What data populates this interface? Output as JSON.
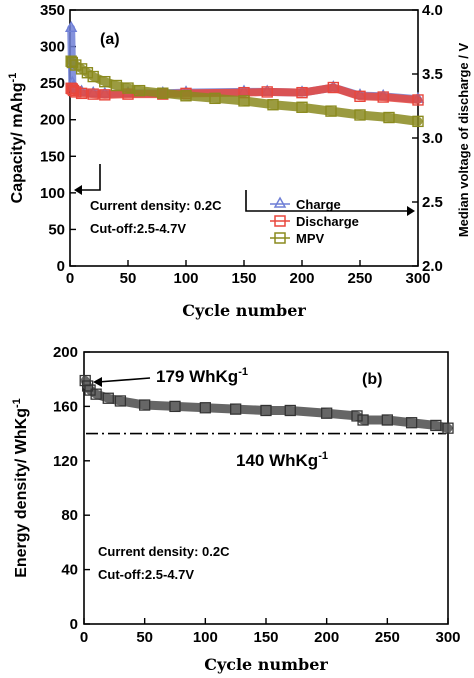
{
  "chart_data": [
    {
      "panel": "(a)",
      "type": "scatter",
      "xlabel": "Cycle number",
      "ylabel": "Capacity/ mAhg",
      "ylabel_sup": "-1",
      "y2label": "Median voltage of discharge / V",
      "xlim": [
        0,
        300
      ],
      "ylim": [
        0,
        350
      ],
      "y2lim": [
        2.0,
        4.0
      ],
      "xticks": [
        0,
        50,
        100,
        150,
        200,
        250,
        300
      ],
      "yticks": [
        0,
        50,
        100,
        150,
        200,
        250,
        300,
        350
      ],
      "y2ticks": [
        "2.0",
        "2.5",
        "3.0",
        "3.5",
        "4.0"
      ],
      "notes": [
        "Current density: 0.2C",
        "Cut-off:2.5-4.7V"
      ],
      "legend_position": "right",
      "series": [
        {
          "name": "Charge",
          "axis": "left",
          "color": "#6f7fd6",
          "marker": "triangle",
          "x": [
            1,
            2,
            3,
            5,
            10,
            20,
            30,
            50,
            80,
            100,
            150,
            170,
            200,
            227,
            250,
            270,
            300
          ],
          "y": [
            325,
            250,
            245,
            242,
            238,
            236,
            235,
            236,
            236,
            237,
            238,
            238,
            237,
            244,
            233,
            232,
            228
          ]
        },
        {
          "name": "Discharge",
          "axis": "left",
          "color": "#e8463c",
          "marker": "square",
          "x": [
            1,
            2,
            3,
            5,
            10,
            20,
            30,
            50,
            80,
            100,
            150,
            170,
            200,
            227,
            250,
            270,
            300
          ],
          "y": [
            243,
            242,
            240,
            238,
            236,
            235,
            234,
            235,
            235,
            236,
            237,
            238,
            237,
            244,
            232,
            231,
            227
          ]
        },
        {
          "name": "MPV",
          "axis": "right",
          "color": "#8a8a1e",
          "marker": "square",
          "x": [
            1,
            2,
            5,
            10,
            15,
            20,
            30,
            40,
            50,
            60,
            80,
            100,
            125,
            150,
            175,
            200,
            225,
            250,
            275,
            300
          ],
          "y": [
            3.6,
            3.59,
            3.57,
            3.54,
            3.51,
            3.48,
            3.44,
            3.41,
            3.39,
            3.37,
            3.35,
            3.33,
            3.31,
            3.29,
            3.26,
            3.24,
            3.21,
            3.18,
            3.16,
            3.13
          ]
        }
      ]
    },
    {
      "panel": "(b)",
      "type": "scatter",
      "xlabel": "Cycle number",
      "ylabel": "Energy density/ WhKg",
      "ylabel_sup": "-1",
      "xlim": [
        0,
        300
      ],
      "ylim": [
        0,
        200
      ],
      "xticks": [
        0,
        50,
        100,
        150,
        200,
        250,
        300
      ],
      "yticks": [
        0,
        40,
        80,
        120,
        160,
        200
      ],
      "notes": [
        "Current density: 0.2C",
        "Cut-off:2.5-4.7V"
      ],
      "annotations": [
        {
          "text": "179 WhKg",
          "sup": "-1",
          "x": 1,
          "y": 179
        },
        {
          "text": "140 WhKg",
          "sup": "-1",
          "y": 140
        }
      ],
      "reference_line": {
        "y": 140,
        "style": "dash-dot"
      },
      "series": [
        {
          "name": "Energy density",
          "color": "#555555",
          "marker": "square",
          "x": [
            1,
            3,
            5,
            10,
            20,
            30,
            50,
            75,
            100,
            125,
            150,
            170,
            200,
            225,
            230,
            250,
            270,
            290,
            300
          ],
          "y": [
            179,
            175,
            172,
            169,
            166,
            164,
            161,
            160,
            159,
            158,
            157,
            157,
            155,
            153,
            150,
            150,
            148,
            146,
            144
          ]
        }
      ]
    }
  ]
}
